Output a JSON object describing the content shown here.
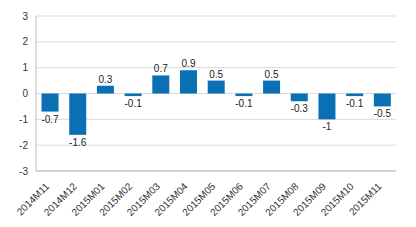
{
  "chart_data": {
    "type": "bar",
    "categories": [
      "2014M11",
      "2014M12",
      "2015M01",
      "2015M02",
      "2015M03",
      "2015M04",
      "2015M05",
      "2015M06",
      "2015M07",
      "2015M08",
      "2015M09",
      "2015M10",
      "2015M11"
    ],
    "values": [
      -0.7,
      -1.6,
      0.3,
      -0.1,
      0.7,
      0.9,
      0.5,
      -0.1,
      0.5,
      -0.3,
      -1.0,
      -0.1,
      -0.5
    ],
    "color": "#0a6fb3",
    "ylim": [
      -3,
      3
    ],
    "yticks": [
      -3,
      -2,
      -1,
      0,
      1,
      2,
      3
    ],
    "grid": true,
    "data_labels": true
  }
}
